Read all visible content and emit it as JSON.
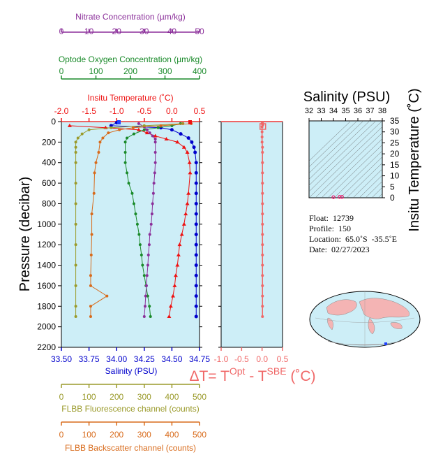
{
  "chart_data": [
    {
      "type": "line",
      "ylabel": "Pressure (decibar)",
      "ylim": [
        2200,
        0
      ],
      "yticks": [
        0,
        200,
        400,
        600,
        800,
        1000,
        1200,
        1400,
        1600,
        1800,
        2000,
        2200
      ],
      "axes": {
        "nitrate": {
          "label": "Nitrate Concentration (µm/kg)",
          "range": [
            0,
            50
          ],
          "ticks": [
            0,
            10,
            20,
            30,
            40,
            50
          ],
          "color": "#8b2f9a"
        },
        "oxygen": {
          "label": "Optode Oxygen Concentration (µm/kg)",
          "range": [
            0,
            400
          ],
          "ticks": [
            0,
            100,
            200,
            300,
            400
          ],
          "color": "#1a8a2a"
        },
        "temperature": {
          "label": "Insitu Temperature (˚C)",
          "range": [
            -2.0,
            0.5
          ],
          "ticks": [
            "-2.0",
            "-1.5",
            "-1.0",
            "-0.5",
            "0.0",
            "0.5"
          ],
          "color": "#ee1111"
        },
        "salinity": {
          "label": "Salinity (PSU)",
          "range": [
            33.5,
            34.75
          ],
          "ticks": [
            "33.50",
            "33.75",
            "34.00",
            "34.25",
            "34.50",
            "34.75"
          ],
          "color": "#0000cc"
        },
        "fluorescence": {
          "label": "FLBB Fluorescence channel (counts)",
          "range": [
            0,
            500
          ],
          "ticks": [
            0,
            100,
            200,
            300,
            400,
            500
          ],
          "color": "#9a9a2a"
        },
        "backscatter": {
          "label": "FLBB Backscatter channel (counts)",
          "range": [
            0,
            500
          ],
          "ticks": [
            0,
            100,
            200,
            300,
            400,
            500
          ],
          "color": "#d86a1a"
        }
      },
      "series": [
        {
          "axis": "temperature",
          "color": "#ee1111",
          "points": [
            [
              -1.85,
              40
            ],
            [
              -1.2,
              60
            ],
            [
              -0.6,
              80
            ],
            [
              -0.45,
              110
            ],
            [
              -0.3,
              140
            ],
            [
              -0.1,
              170
            ],
            [
              0.1,
              200
            ],
            [
              0.22,
              250
            ],
            [
              0.28,
              300
            ],
            [
              0.32,
              400
            ],
            [
              0.33,
              500
            ],
            [
              0.3,
              700
            ],
            [
              0.28,
              800
            ],
            [
              0.25,
              900
            ],
            [
              0.22,
              1000
            ],
            [
              0.18,
              1100
            ],
            [
              0.14,
              1200
            ],
            [
              0.12,
              1300
            ],
            [
              0.1,
              1400
            ],
            [
              0.07,
              1500
            ],
            [
              0.05,
              1600
            ],
            [
              0.02,
              1700
            ],
            [
              -0.02,
              1800
            ],
            [
              -0.05,
              1900
            ]
          ]
        },
        {
          "axis": "salinity",
          "color": "#0000cc",
          "points": [
            [
              34.0,
              10
            ],
            [
              33.95,
              40
            ],
            [
              34.4,
              60
            ],
            [
              34.5,
              80
            ],
            [
              34.58,
              120
            ],
            [
              34.65,
              160
            ],
            [
              34.68,
              200
            ],
            [
              34.7,
              250
            ],
            [
              34.71,
              300
            ],
            [
              34.72,
              400
            ],
            [
              34.72,
              500
            ],
            [
              34.72,
              600
            ],
            [
              34.72,
              700
            ],
            [
              34.72,
              800
            ],
            [
              34.72,
              900
            ],
            [
              34.72,
              1000
            ],
            [
              34.72,
              1100
            ],
            [
              34.72,
              1200
            ],
            [
              34.72,
              1300
            ],
            [
              34.72,
              1400
            ],
            [
              34.72,
              1500
            ],
            [
              34.72,
              1600
            ],
            [
              34.72,
              1700
            ],
            [
              34.72,
              1800
            ],
            [
              34.72,
              1900
            ]
          ]
        },
        {
          "axis": "oxygen",
          "color": "#1a8a2a",
          "points": [
            [
              345,
              20
            ],
            [
              320,
              40
            ],
            [
              280,
              60
            ],
            [
              240,
              80
            ],
            [
              210,
              120
            ],
            [
              190,
              160
            ],
            [
              185,
              200
            ],
            [
              185,
              300
            ],
            [
              185,
              400
            ],
            [
              190,
              500
            ],
            [
              195,
              600
            ],
            [
              205,
              700
            ],
            [
              210,
              800
            ],
            [
              215,
              900
            ],
            [
              220,
              1000
            ],
            [
              225,
              1100
            ],
            [
              228,
              1200
            ],
            [
              232,
              1300
            ],
            [
              235,
              1400
            ],
            [
              240,
              1500
            ],
            [
              245,
              1600
            ],
            [
              250,
              1700
            ],
            [
              255,
              1800
            ],
            [
              258,
              1900
            ]
          ]
        },
        {
          "axis": "nitrate",
          "color": "#8b2f9a",
          "points": [
            [
              28,
              20
            ],
            [
              30,
              50
            ],
            [
              31,
              80
            ],
            [
              32,
              110
            ],
            [
              33,
              140
            ],
            [
              34,
              170
            ],
            [
              34,
              200
            ],
            [
              34,
              300
            ],
            [
              34,
              400
            ],
            [
              33.8,
              500
            ],
            [
              33.5,
              600
            ],
            [
              33.3,
              700
            ],
            [
              33,
              800
            ],
            [
              32.8,
              900
            ],
            [
              32.5,
              1000
            ],
            [
              32,
              1100
            ],
            [
              31.8,
              1200
            ],
            [
              31.5,
              1300
            ],
            [
              31.3,
              1400
            ],
            [
              31,
              1500
            ],
            [
              30.8,
              1600
            ],
            [
              30.5,
              1700
            ],
            [
              30.3,
              1800
            ],
            [
              30,
              1900
            ]
          ]
        },
        {
          "axis": "fluorescence",
          "color": "#9a9a2a",
          "points": [
            [
              440,
              20
            ],
            [
              300,
              40
            ],
            [
              180,
              60
            ],
            [
              100,
              80
            ],
            [
              75,
              120
            ],
            [
              60,
              160
            ],
            [
              52,
              200
            ],
            [
              52,
              250
            ],
            [
              52,
              300
            ],
            [
              52,
              400
            ],
            [
              52,
              600
            ],
            [
              52,
              800
            ],
            [
              52,
              1000
            ],
            [
              52,
              1200
            ],
            [
              52,
              1400
            ],
            [
              52,
              1600
            ],
            [
              52,
              1800
            ],
            [
              52,
              1900
            ]
          ]
        },
        {
          "axis": "backscatter",
          "color": "#d86a1a",
          "points": [
            [
              470,
              20
            ],
            [
              360,
              40
            ],
            [
              260,
              60
            ],
            [
              210,
              80
            ],
            [
              170,
              110
            ],
            [
              150,
              160
            ],
            [
              140,
              200
            ],
            [
              135,
              300
            ],
            [
              125,
              400
            ],
            [
              120,
              500
            ],
            [
              118,
              700
            ],
            [
              110,
              900
            ],
            [
              110,
              1100
            ],
            [
              108,
              1300
            ],
            [
              106,
              1500
            ],
            [
              106,
              1600
            ],
            [
              165,
              1700
            ],
            [
              106,
              1800
            ],
            [
              106,
              1900
            ]
          ]
        }
      ]
    },
    {
      "type": "scatter",
      "xlabel": "ΔT= T",
      "xlabel_sup1": "Opt",
      "xlabel_mid": " - T",
      "xlabel_sup2": "SBE",
      "xlabel_tail": " (˚C)",
      "xlim": [
        -1.0,
        0.5
      ],
      "xticks": [
        "-1.0",
        "-0.5",
        "0.0",
        "0.5"
      ],
      "ylim": [
        2200,
        0
      ],
      "series": [
        {
          "color": "#f06868",
          "points": [
            [
              0.01,
              10
            ],
            [
              0.0,
              20
            ],
            [
              0.02,
              30
            ],
            [
              0.0,
              50
            ],
            [
              0.0,
              100
            ],
            [
              0.0,
              150
            ],
            [
              0.0,
              200
            ],
            [
              0.01,
              250
            ],
            [
              0.01,
              300
            ],
            [
              0.01,
              400
            ],
            [
              0.01,
              500
            ],
            [
              0.01,
              600
            ],
            [
              0.01,
              700
            ],
            [
              0.01,
              800
            ],
            [
              0.01,
              900
            ],
            [
              0.01,
              1000
            ],
            [
              0.01,
              1100
            ],
            [
              0.01,
              1200
            ],
            [
              0.01,
              1300
            ],
            [
              0.01,
              1400
            ],
            [
              0.01,
              1500
            ],
            [
              0.01,
              1600
            ],
            [
              0.01,
              1700
            ],
            [
              0.01,
              1800
            ],
            [
              0.01,
              1900
            ]
          ]
        }
      ]
    },
    {
      "type": "scatter",
      "title": "Salinity (PSU)",
      "ylabel": "Insitu Temperature (˚C)",
      "xlim": [
        32,
        38
      ],
      "xticks": [
        32,
        33,
        34,
        35,
        36,
        37,
        38
      ],
      "ylim": [
        0,
        35
      ],
      "yticks": [
        0,
        5,
        10,
        15,
        20,
        25,
        30,
        35
      ],
      "points": [
        [
          34.0,
          0.3
        ],
        [
          34.5,
          0.4
        ],
        [
          34.7,
          0.4
        ]
      ]
    }
  ],
  "float_info": {
    "float": "Float:  12739",
    "profile": "Profile:  150",
    "location": "Location:  65.0˚S  -35.5˚E",
    "date": "Date:  02/27/2023"
  }
}
